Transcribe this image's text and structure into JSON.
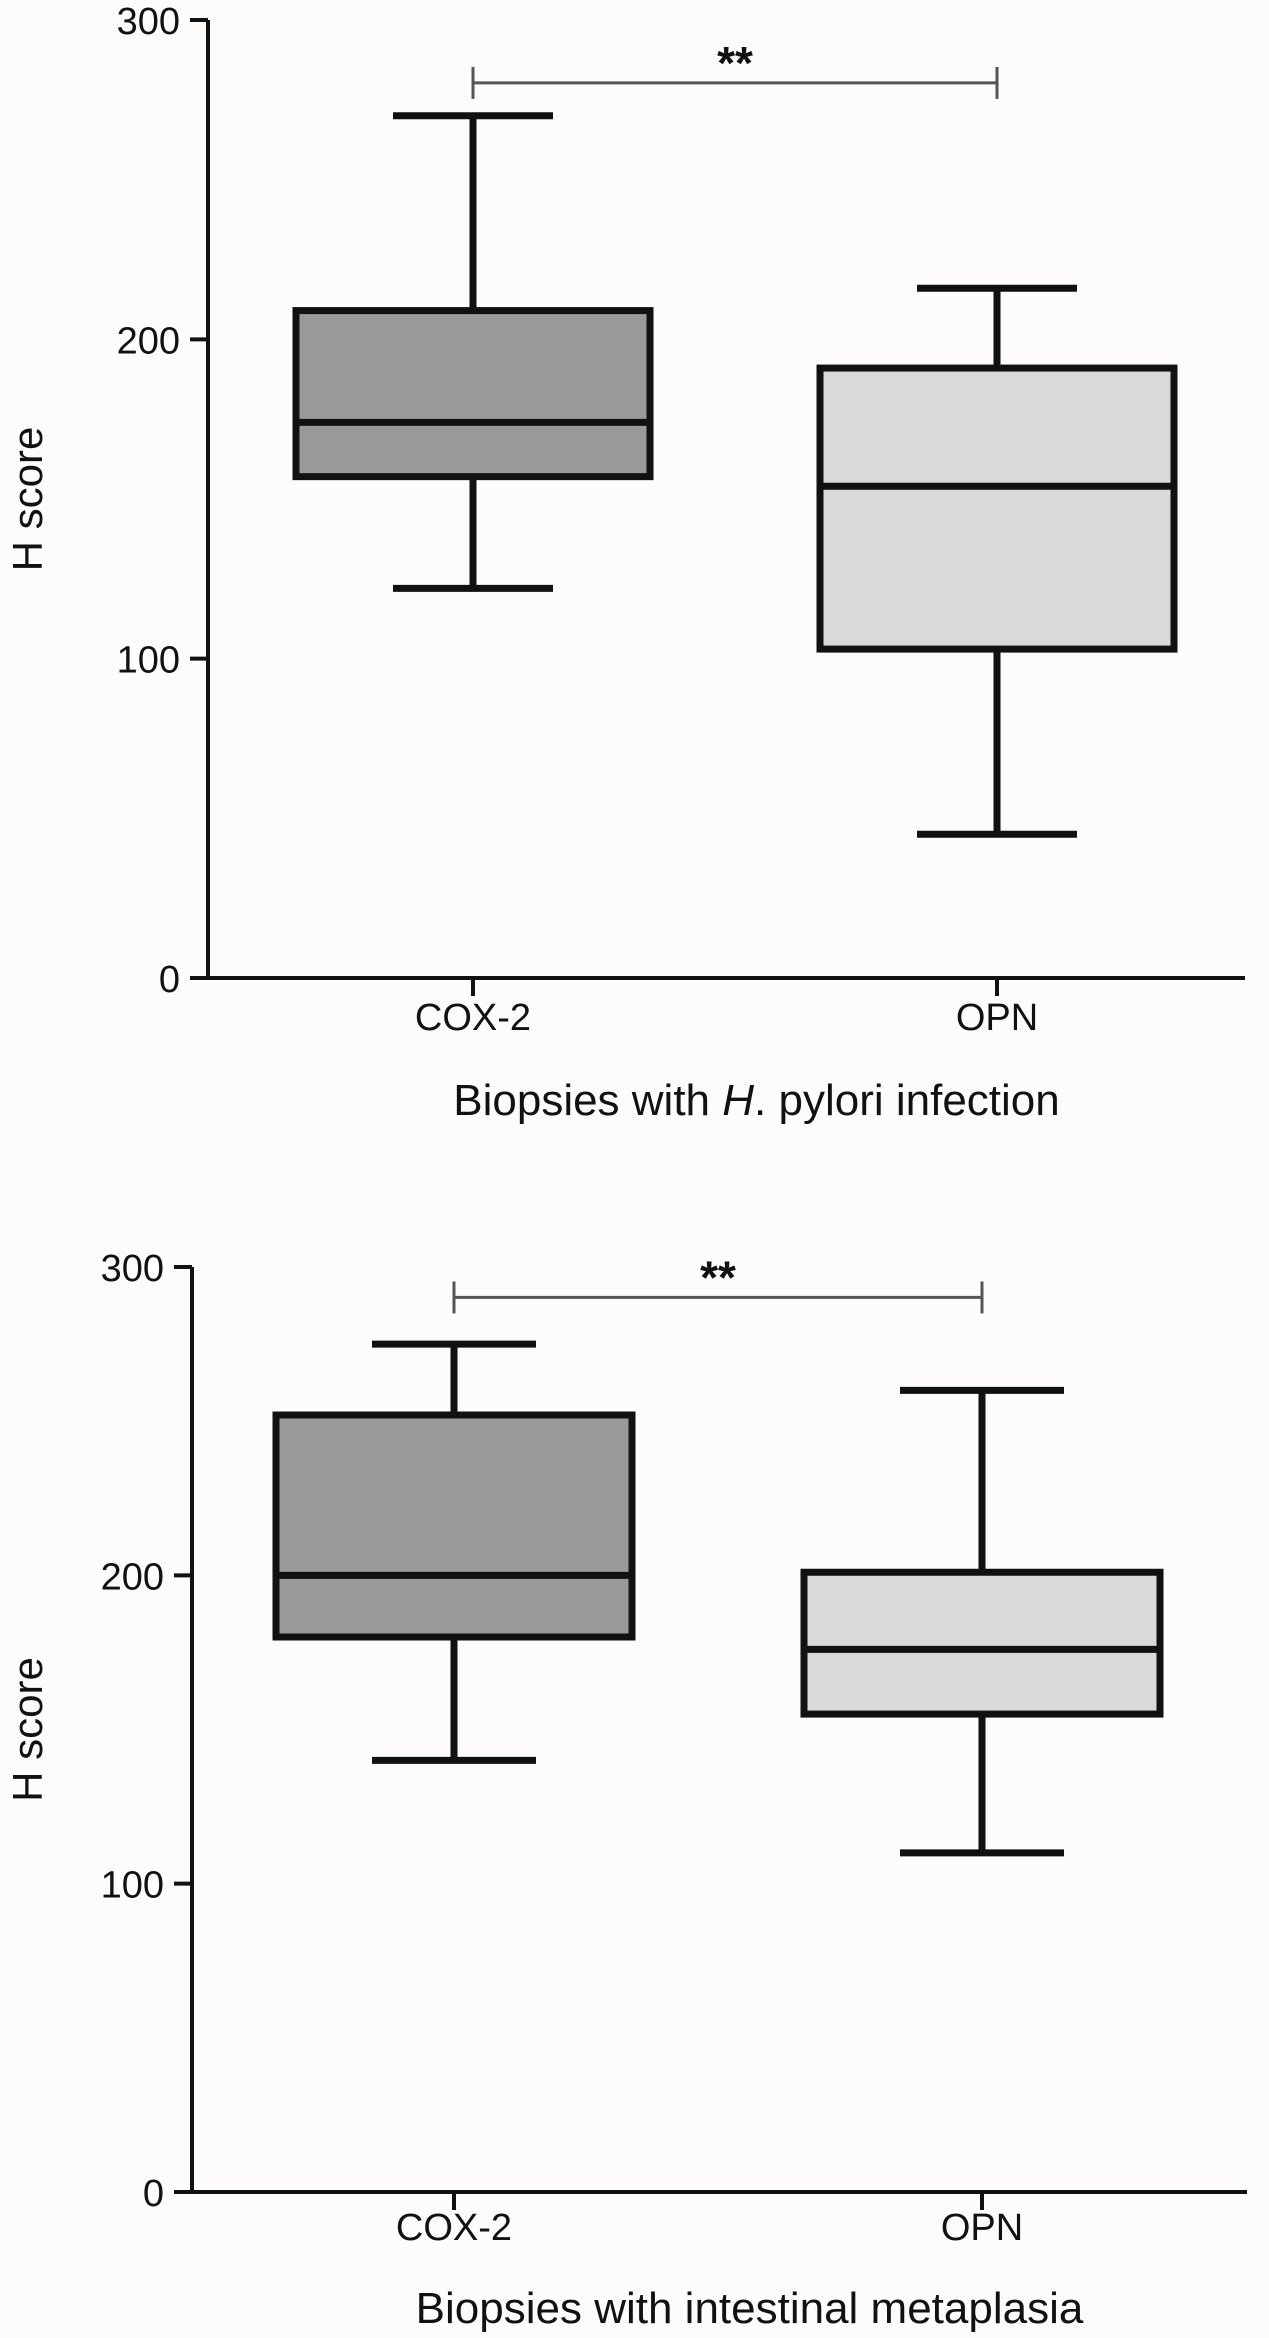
{
  "chart_data": [
    {
      "type": "box",
      "ylabel": "H score",
      "xlabel_parts": [
        {
          "text": "Biopsies with ",
          "italic": false
        },
        {
          "text": "H",
          "italic": true
        },
        {
          "text": ". pylori infection",
          "italic": false
        }
      ],
      "ylim": [
        0,
        300
      ],
      "yticks": [
        "0",
        "100",
        "200",
        "300"
      ],
      "categories": [
        "COX-2",
        "OPN"
      ],
      "boxes": [
        {
          "category": "COX-2",
          "min": 122,
          "q1": 157,
          "median": 174,
          "q3": 209,
          "max": 270,
          "fill": "#999999"
        },
        {
          "category": "OPN",
          "min": 45,
          "q1": 103,
          "median": 154,
          "q3": 191,
          "max": 216,
          "fill": "#d9d9d9"
        }
      ],
      "significance": {
        "label": "**",
        "from": "COX-2",
        "to": "OPN",
        "y": 285
      }
    },
    {
      "type": "box",
      "ylabel": "H score",
      "xlabel_parts": [
        {
          "text": "Biopsies with intestinal metaplasia",
          "italic": false
        }
      ],
      "ylim": [
        0,
        300
      ],
      "yticks": [
        "0",
        "100",
        "200",
        "300"
      ],
      "categories": [
        "COX-2",
        "OPN"
      ],
      "boxes": [
        {
          "category": "COX-2",
          "min": 140,
          "q1": 180,
          "median": 200,
          "q3": 252,
          "max": 275,
          "fill": "#999999"
        },
        {
          "category": "OPN",
          "min": 110,
          "q1": 155,
          "median": 176,
          "q3": 201,
          "max": 260,
          "fill": "#d9d9d9"
        }
      ],
      "significance": {
        "label": "**",
        "from": "COX-2",
        "to": "OPN",
        "y": 295
      }
    }
  ]
}
